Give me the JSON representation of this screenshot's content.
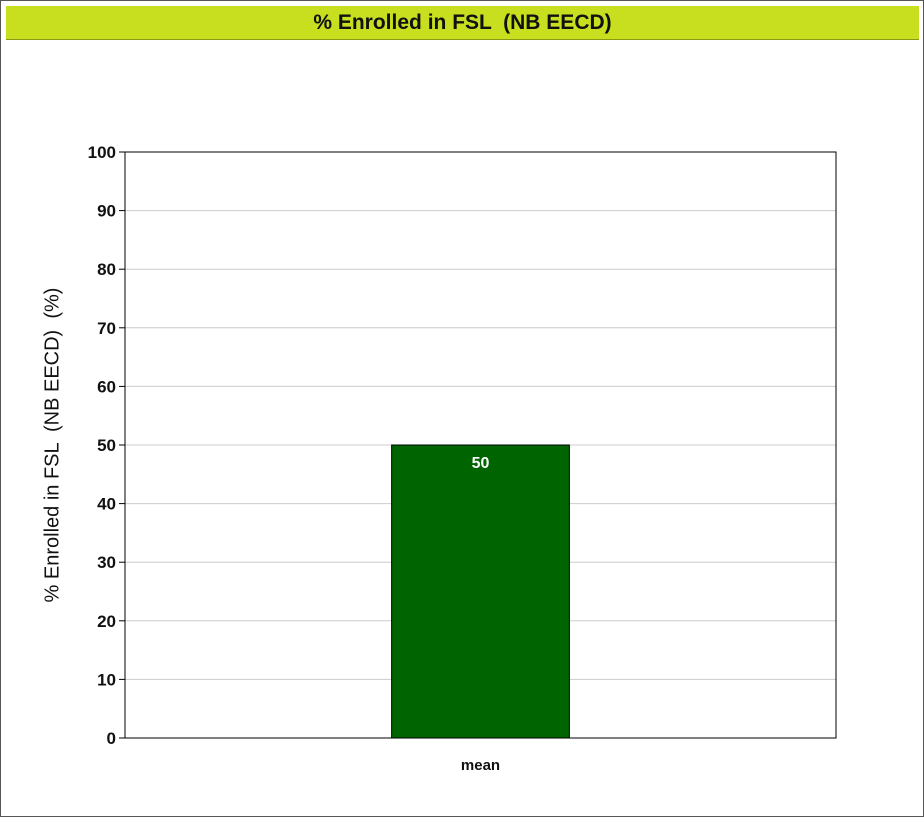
{
  "colors": {
    "title_bar": "#c7df1f",
    "bar_fill": "#006400",
    "grid": "#cccccc",
    "axis": "#000000",
    "data_label": "#ffffff"
  },
  "chart_data": {
    "type": "bar",
    "title": "% Enrolled in FSL  (NB EECD)",
    "ylabel": "% Enrolled in FSL  (NB EECD)  (%)",
    "xlabel": "",
    "categories": [
      "mean"
    ],
    "values": [
      50
    ],
    "data_labels": [
      "50"
    ],
    "ylim": [
      0,
      100
    ],
    "yticks": [
      0,
      10,
      20,
      30,
      40,
      50,
      60,
      70,
      80,
      90,
      100
    ],
    "grid": true,
    "legend": "none"
  }
}
